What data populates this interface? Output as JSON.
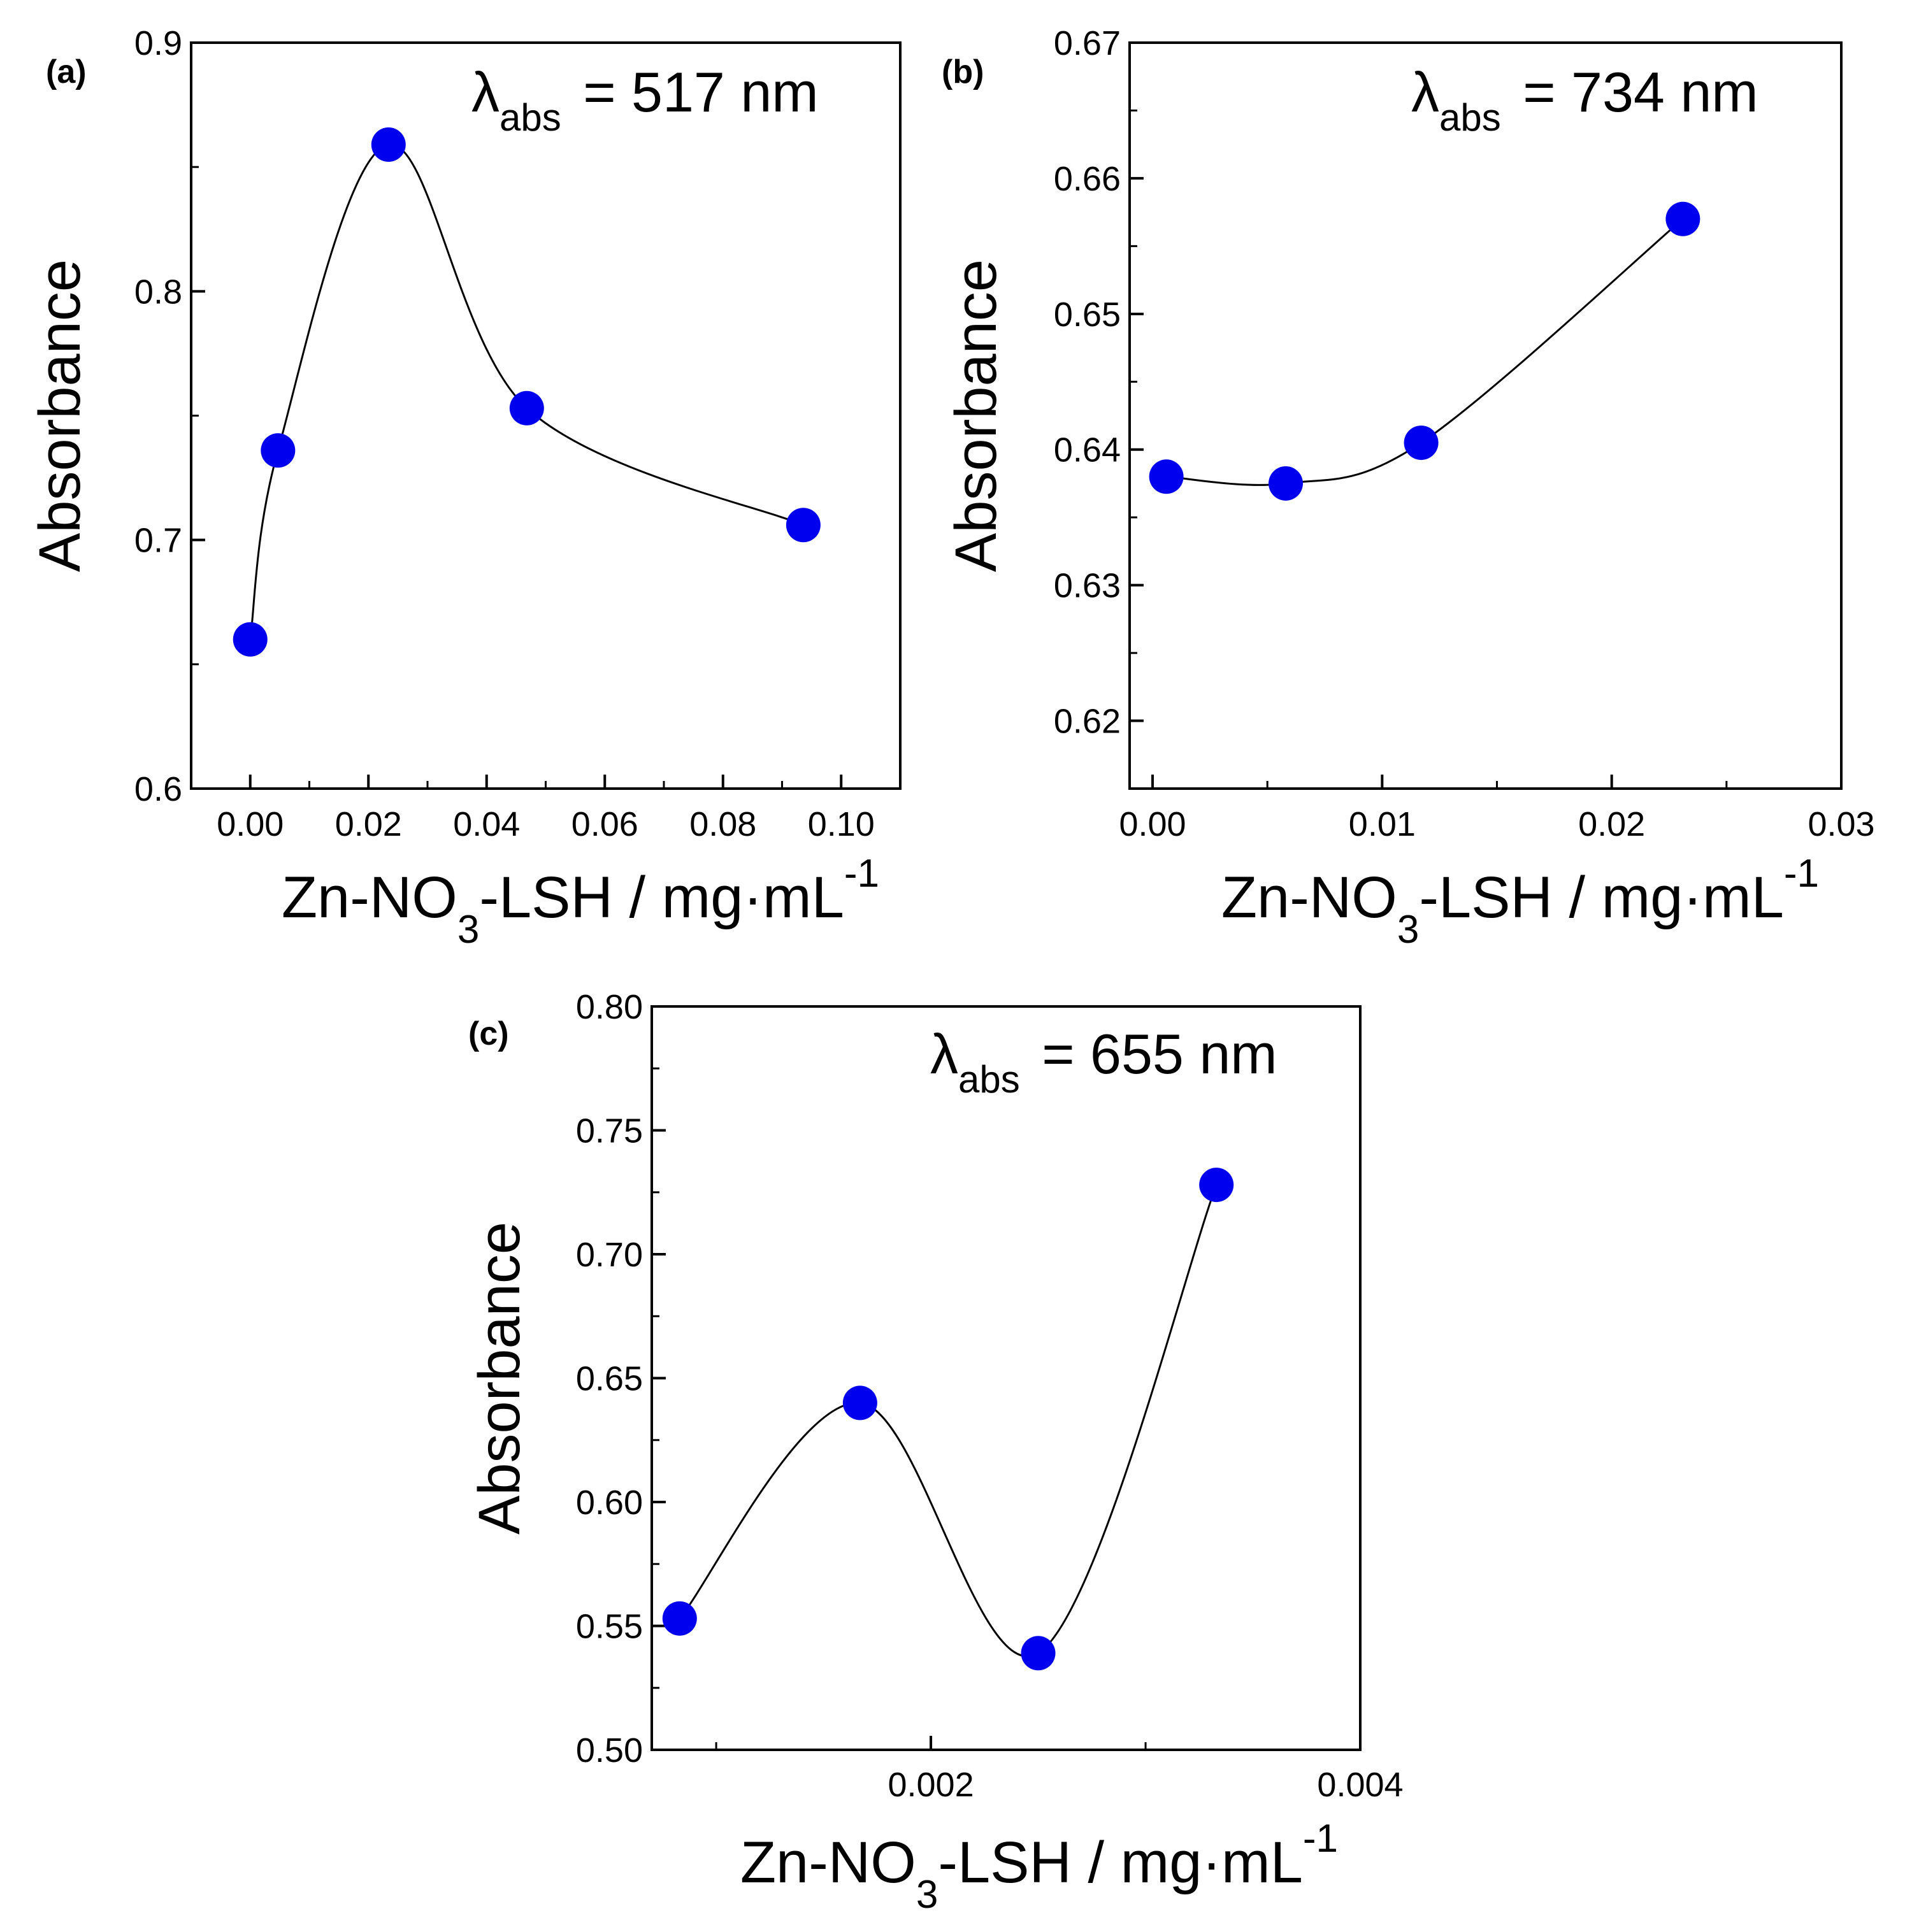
{
  "figure_title": "Absorbance vs Zn-NO3-LSH concentration",
  "colors": {
    "marker": "#0000ee",
    "line": "#000000",
    "axis": "#000000"
  },
  "chart_data": [
    {
      "type": "line",
      "panel": "(a)",
      "lambda_symbol": "λ",
      "lambda_sub": "abs",
      "lambda_value": "= 517 nm",
      "ylabel": "Absorbance",
      "xlabel_main": "Zn-NO",
      "xlabel_sub": "3",
      "xlabel_mid": "-LSH / mg·mL",
      "xlabel_sup": "-1",
      "xlim": [
        -0.01,
        0.11
      ],
      "ylim": [
        0.6,
        0.9
      ],
      "xticks": [
        0.0,
        0.02,
        0.04,
        0.06,
        0.08,
        0.1
      ],
      "xtick_labels": [
        "0.00",
        "0.02",
        "0.04",
        "0.06",
        "0.08",
        "0.10"
      ],
      "yticks": [
        0.6,
        0.7,
        0.8,
        0.9
      ],
      "ytick_labels": [
        "0.6",
        "0.7",
        "0.8",
        "0.9"
      ],
      "curve": "spline",
      "x": [
        0.0,
        0.0047,
        0.0234,
        0.0468,
        0.0936
      ],
      "y": [
        0.66,
        0.736,
        0.859,
        0.753,
        0.706
      ]
    },
    {
      "type": "line",
      "panel": "(b)",
      "lambda_symbol": "λ",
      "lambda_sub": "abs",
      "lambda_value": "= 734 nm",
      "ylabel": "Absorbance",
      "xlabel_main": "Zn-NO",
      "xlabel_sub": "3",
      "xlabel_mid": "-LSH / mg·mL",
      "xlabel_sup": "-1",
      "xlim": [
        -0.001,
        0.03
      ],
      "ylim": [
        0.615,
        0.67
      ],
      "xticks": [
        0.0,
        0.01,
        0.02,
        0.03
      ],
      "xtick_labels": [
        "0.00",
        "0.01",
        "0.02",
        "0.03"
      ],
      "yticks": [
        0.62,
        0.63,
        0.64,
        0.65,
        0.66,
        0.67
      ],
      "ytick_labels": [
        "0.62",
        "0.63",
        "0.64",
        "0.65",
        "0.66",
        "0.67"
      ],
      "curve": "spline",
      "x": [
        0.0006,
        0.0058,
        0.0117,
        0.0231
      ],
      "y": [
        0.638,
        0.6375,
        0.6405,
        0.657
      ]
    },
    {
      "type": "line",
      "panel": "(c)",
      "lambda_symbol": "λ",
      "lambda_sub": "abs",
      "lambda_value": "= 655 nm",
      "ylabel": "Absorbance",
      "xlabel_main": "Zn-NO",
      "xlabel_sub": "3",
      "xlabel_mid": "-LSH / mg·mL",
      "xlabel_sup": "-1",
      "xlim": [
        0.0007,
        0.004
      ],
      "ylim": [
        0.5,
        0.8
      ],
      "xticks": [
        0.002,
        0.004
      ],
      "xtick_labels": [
        "0.002",
        "0.004"
      ],
      "yticks": [
        0.5,
        0.55,
        0.6,
        0.65,
        0.7,
        0.75,
        0.8
      ],
      "ytick_labels": [
        "0.50",
        "0.55",
        "0.60",
        "0.65",
        "0.70",
        "0.75",
        "0.80"
      ],
      "curve": "spline",
      "x": [
        0.00083,
        0.00167,
        0.0025,
        0.00333
      ],
      "y": [
        0.553,
        0.64,
        0.539,
        0.728
      ]
    }
  ]
}
